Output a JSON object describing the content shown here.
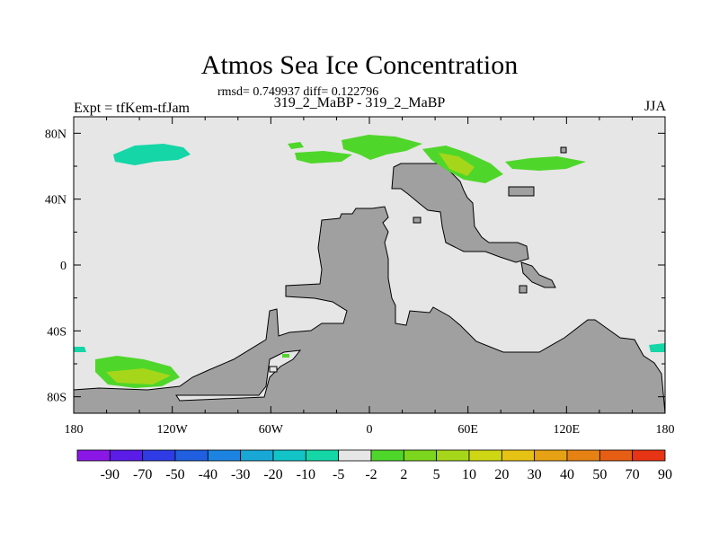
{
  "title": "Atmos Sea Ice Concentration",
  "stats": "rmsd= 0.749937 diff= 0.122796",
  "expt": "Expt = tfKem-tfJam",
  "cases": "319_2_MaBP - 319_2_MaBP",
  "season": "JJA",
  "map": {
    "lon_ticks": [
      "180",
      "120W",
      "60W",
      "0",
      "60E",
      "120E",
      "180"
    ],
    "lat_ticks": [
      "80N",
      "40N",
      "0",
      "40S",
      "80S"
    ],
    "lon_range": [
      -180,
      180
    ],
    "lat_range": [
      -90,
      90
    ]
  },
  "colorbar": {
    "labels": [
      "-90",
      "-70",
      "-50",
      "-40",
      "-30",
      "-20",
      "-10",
      "-5",
      "-2",
      "2",
      "5",
      "10",
      "20",
      "30",
      "40",
      "50",
      "70",
      "90"
    ],
    "colors": [
      "#8a17e6",
      "#5a1ce6",
      "#2f3ce6",
      "#1f5fe0",
      "#1c84e0",
      "#19a7d6",
      "#12c4c8",
      "#14d6a6",
      "#e6e6e6",
      "#4fd62a",
      "#7cd61e",
      "#a6d61a",
      "#cfd614",
      "#e6c214",
      "#e6a214",
      "#e68214",
      "#e65e14",
      "#e63414"
    ]
  },
  "colors": {
    "land": "#a0a0a0",
    "ocean": "#e6e6e6",
    "teal": "#14d6a6",
    "green": "#4fd62a",
    "lightgreen": "#7cd61e",
    "olive": "#a6d61a"
  }
}
